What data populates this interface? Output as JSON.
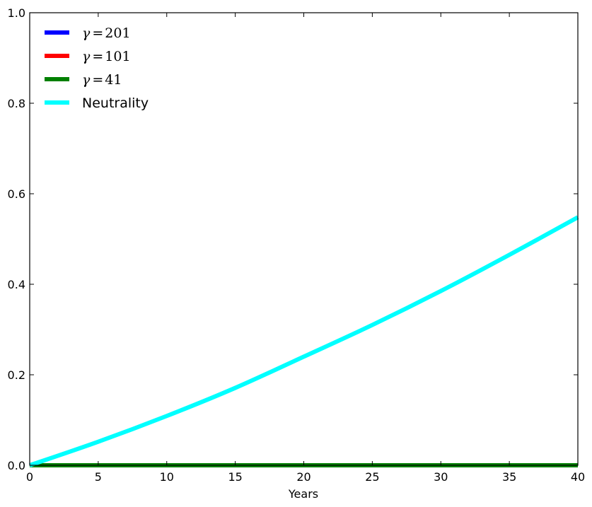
{
  "chart_data": {
    "type": "line",
    "title": "",
    "xlabel": "Years",
    "ylabel": "",
    "xlim": [
      0,
      40
    ],
    "ylim": [
      0,
      1.0
    ],
    "xticks": [
      0,
      5,
      10,
      15,
      20,
      25,
      30,
      35,
      40
    ],
    "xtick_labels": [
      "0",
      "5",
      "10",
      "15",
      "20",
      "25",
      "30",
      "35",
      "40"
    ],
    "yticks": [
      0.0,
      0.2,
      0.4,
      0.6,
      0.8,
      1.0
    ],
    "ytick_labels": [
      "0.0",
      "0.2",
      "0.4",
      "0.6",
      "0.8",
      "1.0"
    ],
    "grid": false,
    "legend_position": "top-left",
    "x": [
      0,
      5,
      10,
      15,
      20,
      25,
      30,
      35,
      40
    ],
    "series": [
      {
        "name": "γ = 201",
        "symbol": "γ",
        "value_text": "201",
        "color": "#0000ff",
        "values": [
          0,
          0,
          0,
          0,
          0,
          0,
          0,
          0,
          0
        ]
      },
      {
        "name": "γ = 101",
        "symbol": "γ",
        "value_text": "101",
        "color": "#ff0000",
        "values": [
          0,
          0,
          0,
          0,
          0,
          0,
          0,
          0,
          0
        ]
      },
      {
        "name": "γ = 41",
        "symbol": "γ",
        "value_text": "41",
        "color": "#008000",
        "values": [
          0,
          0,
          0,
          0,
          0,
          0,
          0,
          0,
          0
        ]
      },
      {
        "name": "Neutrality",
        "color": "#00ffff",
        "values": [
          0,
          0.052,
          0.109,
          0.171,
          0.24,
          0.31,
          0.385,
          0.465,
          0.548
        ]
      }
    ]
  }
}
